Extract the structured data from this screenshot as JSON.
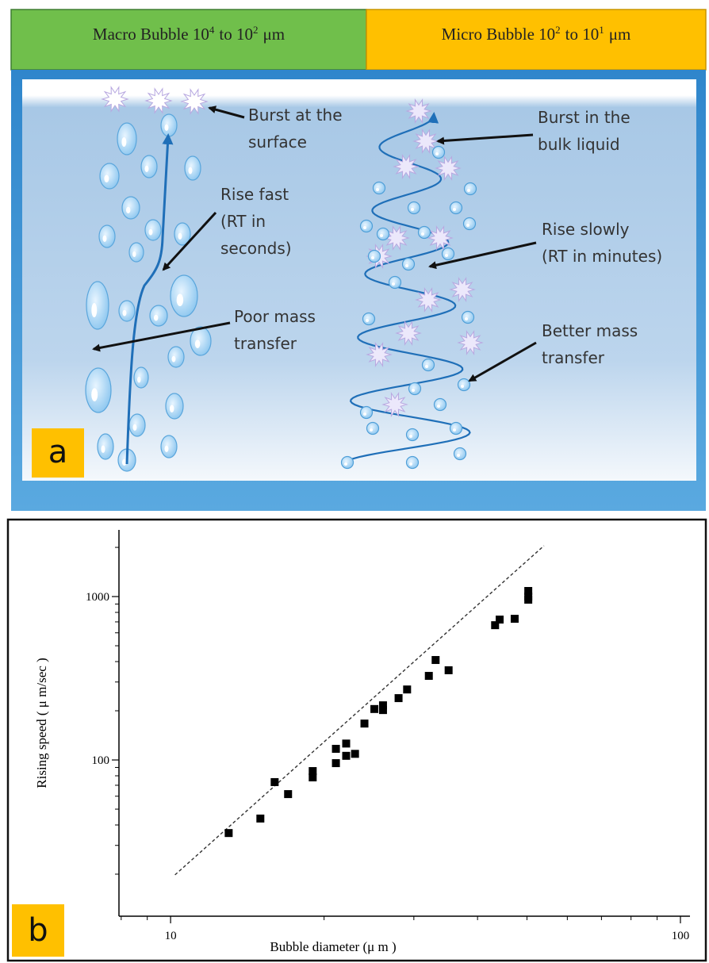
{
  "header": {
    "left": {
      "base": "Macro Bubble 10",
      "exp1": "4",
      "mid": "to 10",
      "exp2": "2",
      "unit": "μm"
    },
    "right": {
      "base": "Micro Bubble 10",
      "exp1": "2",
      "mid": "to 10",
      "exp2": "1",
      "unit": "μm"
    }
  },
  "panel_a": {
    "label": "a",
    "annotations": [
      {
        "lines": [
          "Burst at the",
          "surface"
        ]
      },
      {
        "lines": [
          "Rise fast",
          "(RT in",
          "seconds)"
        ]
      },
      {
        "lines": [
          "Poor mass",
          "transfer"
        ]
      },
      {
        "lines": [
          "Burst in the",
          "bulk liquid"
        ]
      },
      {
        "lines": [
          "Rise slowly",
          "(RT in minutes)"
        ]
      },
      {
        "lines": [
          "Better mass",
          "transfer"
        ]
      }
    ]
  },
  "panel_b": {
    "label": "b"
  },
  "chart_data": {
    "type": "scatter",
    "xlabel": "Bubble diameter (μ m )",
    "ylabel": "Rising speed ( μ m/sec )",
    "xscale": "log",
    "yscale": "log",
    "color": "#000000",
    "x": [
      13.0,
      15.0,
      16.0,
      17.0,
      19.0,
      19.0,
      21.1,
      21.1,
      22.1,
      22.1,
      23.0,
      24.0,
      25.1,
      26.1,
      26.1,
      28.0,
      29.1,
      32.1,
      33.1,
      35.1,
      43.3,
      44.2,
      47.3,
      50.3,
      50.3,
      50.3
    ],
    "values": [
      35.7,
      43.8,
      73.2,
      61.8,
      85.5,
      78.2,
      117,
      95.6,
      126,
      106,
      109,
      167,
      205,
      216,
      202,
      239,
      270,
      327,
      409,
      354,
      668,
      723,
      731,
      1082,
      1000,
      957
    ],
    "reference_line": {
      "x": [
        10.2,
        54.0
      ],
      "y": [
        19.8,
        2047
      ],
      "color": "#333333"
    },
    "xlim": [
      7.92,
      104.4
    ],
    "ylim": [
      11.06,
      2559
    ],
    "xticks": [
      10,
      100
    ],
    "yticks": [
      100,
      1000
    ],
    "xminorticks": [
      8,
      9,
      20,
      30,
      40,
      50,
      60,
      70,
      80,
      90
    ],
    "yminorticks": [
      20,
      30,
      40,
      50,
      60,
      70,
      80,
      90,
      200,
      300,
      400,
      500,
      600,
      700,
      800,
      900,
      2000
    ]
  }
}
